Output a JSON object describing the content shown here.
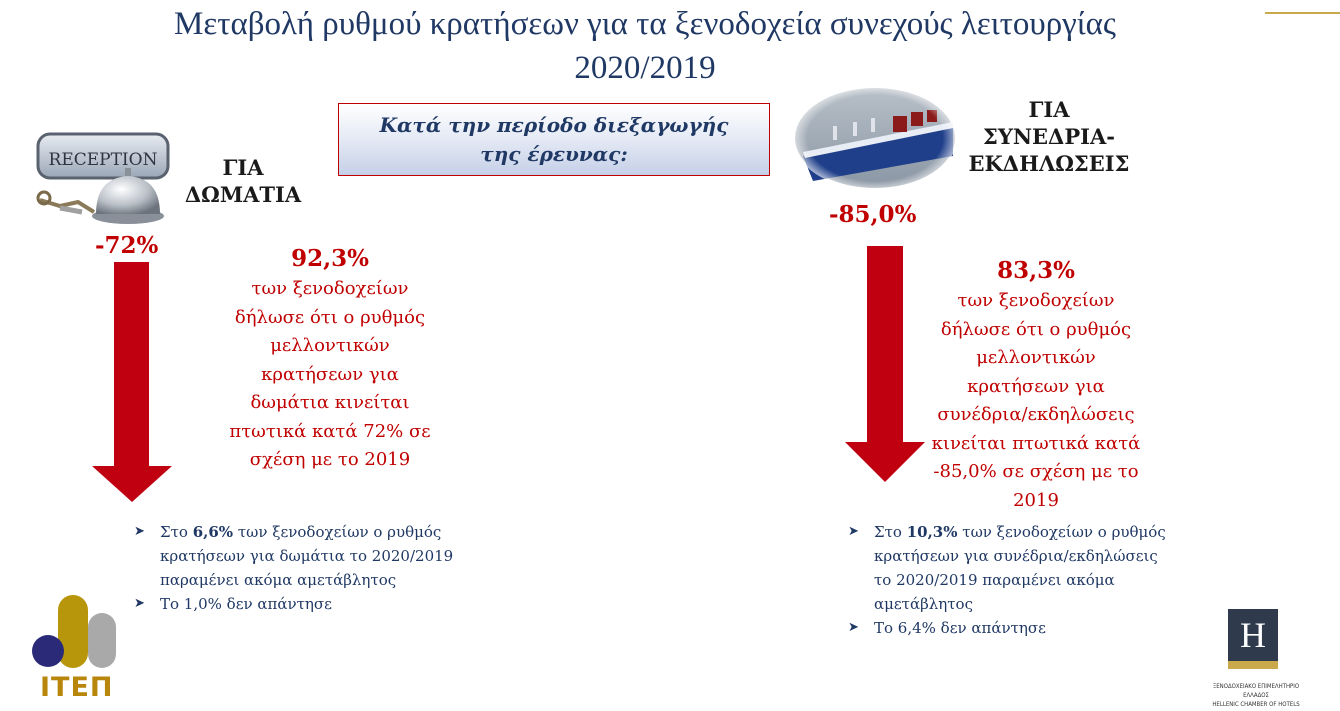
{
  "title": {
    "line1": "Μεταβολή ρυθμού κρατήσεων για τα ξενοδοχεία συνεχούς λειτουργίας",
    "line2": "2020/2019"
  },
  "period_box": {
    "line1": "Κατά την περίοδο διεξαγωγής",
    "line2": "της έρευνας:"
  },
  "rooms": {
    "image_label": "RECEPTION",
    "heading_line1": "ΓΙΑ",
    "heading_line2": "ΔΩΜΑΤΙΑ",
    "change": "-72%",
    "change_value": -72,
    "share": "92,3%",
    "desc_lines": [
      "των ξενοδοχείων",
      "δήλωσε ότι ο ρυθμός",
      "μελλοντικών",
      "κρατήσεων για",
      "δωμάτια κινείται",
      "πτωτικά κατά 72% σε",
      "σχέση με το 2019"
    ],
    "bullets": [
      {
        "pre": "Στο ",
        "bold": "6,6%",
        "post": " των ξενοδοχείων ο ρυθμός"
      },
      {
        "pre": "",
        "bold": "",
        "post": "κρατήσεων για δωμάτια το 2020/2019"
      },
      {
        "pre": "",
        "bold": "",
        "post": "παραμένει ακόμα αμετάβλητος"
      },
      {
        "pre": "Το 1,0% δεν απάντησε",
        "bold": "",
        "post": ""
      }
    ]
  },
  "events": {
    "heading_line1": "ΓΙΑ",
    "heading_line2": "ΣΥΝΕΔΡΙΑ-",
    "heading_line3": "ΕΚΔΗΛΩΣΕΙΣ",
    "change": "-85,0%",
    "change_value": -85.0,
    "share": "83,3%",
    "desc_lines": [
      "των ξενοδοχείων",
      "δήλωσε ότι ο ρυθμός",
      "μελλοντικών",
      "κρατήσεων για",
      "συνέδρια/εκδηλώσεις",
      "κινείται πτωτικά κατά",
      "-85,0% σε σχέση με το",
      "2019"
    ],
    "bullets": [
      {
        "pre": "Στο ",
        "bold": "10,3%",
        "post": " των ξενοδοχείων ο ρυθμός"
      },
      {
        "pre": "",
        "bold": "",
        "post": "κρατήσεων για συνέδρια/εκδηλώσεις"
      },
      {
        "pre": "",
        "bold": "",
        "post": "το 2020/2019 παραμένει  ακόμα"
      },
      {
        "pre": "",
        "bold": "",
        "post": "αμετάβλητος"
      },
      {
        "pre": "Το 6,4% δεν απάντησε",
        "bold": "",
        "post": ""
      }
    ]
  },
  "logos": {
    "itep": "ΙΤΕΠ",
    "hotel_letter": "H",
    "hotel_caption_line1": "ΞΕΝΟΔΟΧΕΙΑΚΟ ΕΠΙΜΕΛΗΤΗΡΙΟ ΕΛΛΑΔΟΣ",
    "hotel_caption_line2": "HELLENIC CHAMBER OF HOTELS"
  },
  "colors": {
    "title": "#1f3864",
    "accent_red": "#c00000",
    "arrow_red": "#c00010",
    "bullet_text": "#1f3864",
    "gold": "#b8860b"
  }
}
